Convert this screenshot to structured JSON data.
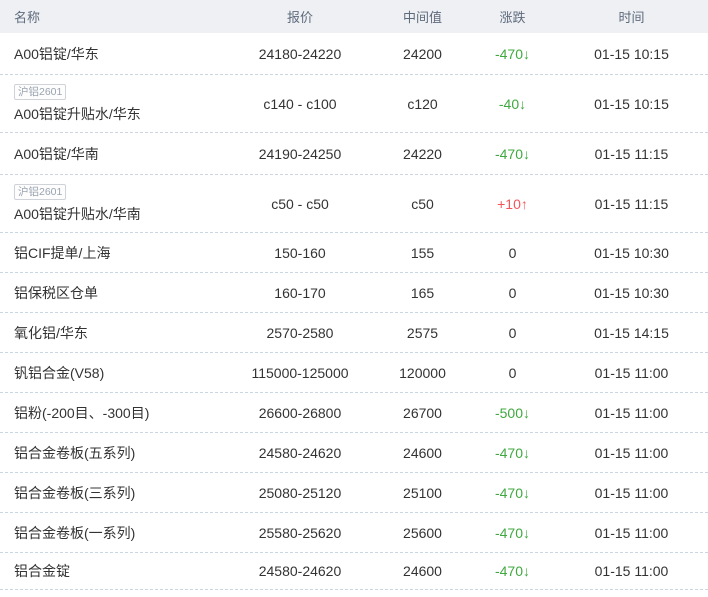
{
  "table": {
    "headers": {
      "name": "名称",
      "quote": "报价",
      "mid": "中间值",
      "change": "涨跌",
      "time": "时间"
    },
    "colors": {
      "down_green": "#3fa93f",
      "up_red": "#f2555a",
      "flat": "#333333",
      "header_bg": "#eef0f4",
      "divider": "#ccd6e2"
    },
    "rows": [
      {
        "name": "A00铝锭/华东",
        "quote": "24180-24220",
        "mid": "24200",
        "change": "-470↓",
        "trend": "down",
        "time": "01-15 10:15"
      },
      {
        "badge": "沪铝2601",
        "name": "A00铝锭升贴水/华东",
        "quote": "c140 - c100",
        "mid": "c120",
        "change": "-40↓",
        "trend": "down",
        "time": "01-15 10:15"
      },
      {
        "name": "A00铝锭/华南",
        "quote": "24190-24250",
        "mid": "24220",
        "change": "-470↓",
        "trend": "down",
        "time": "01-15 11:15"
      },
      {
        "badge": "沪铝2601",
        "name": "A00铝锭升贴水/华南",
        "quote": "c50 - c50",
        "mid": "c50",
        "change": "+10↑",
        "trend": "up",
        "time": "01-15 11:15"
      },
      {
        "name": "铝CIF提单/上海",
        "quote": "150-160",
        "mid": "155",
        "change": "0",
        "trend": "flat",
        "time": "01-15 10:30"
      },
      {
        "name": "铝保税区仓单",
        "quote": "160-170",
        "mid": "165",
        "change": "0",
        "trend": "flat",
        "time": "01-15 10:30"
      },
      {
        "name": "氧化铝/华东",
        "quote": "2570-2580",
        "mid": "2575",
        "change": "0",
        "trend": "flat",
        "time": "01-15 14:15"
      },
      {
        "name": "钒铝合金(V58)",
        "quote": "115000-125000",
        "mid": "120000",
        "change": "0",
        "trend": "flat",
        "time": "01-15 11:00"
      },
      {
        "name": "铝粉(-200目、-300目)",
        "quote": "26600-26800",
        "mid": "26700",
        "change": "-500↓",
        "trend": "down",
        "time": "01-15 11:00"
      },
      {
        "name": "铝合金卷板(五系列)",
        "quote": "24580-24620",
        "mid": "24600",
        "change": "-470↓",
        "trend": "down",
        "time": "01-15 11:00"
      },
      {
        "name": "铝合金卷板(三系列)",
        "quote": "25080-25120",
        "mid": "25100",
        "change": "-470↓",
        "trend": "down",
        "time": "01-15 11:00"
      },
      {
        "name": "铝合金卷板(一系列)",
        "quote": "25580-25620",
        "mid": "25600",
        "change": "-470↓",
        "trend": "down",
        "time": "01-15 11:00"
      },
      {
        "name": "铝合金锭",
        "quote": "24580-24620",
        "mid": "24600",
        "change": "-470↓",
        "trend": "down",
        "time": "01-15 11:00"
      }
    ]
  }
}
